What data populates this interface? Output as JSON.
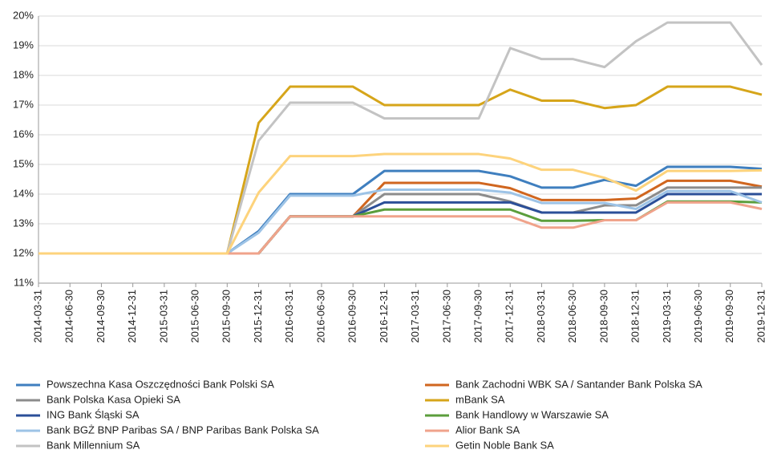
{
  "chart_data": {
    "type": "line",
    "x": [
      "2014-03-31",
      "2014-06-30",
      "2014-09-30",
      "2014-12-31",
      "2015-03-31",
      "2015-06-30",
      "2015-09-30",
      "2015-12-31",
      "2016-03-31",
      "2016-06-30",
      "2016-09-30",
      "2016-12-31",
      "2017-03-31",
      "2017-06-30",
      "2017-09-30",
      "2017-12-31",
      "2018-03-31",
      "2018-06-30",
      "2018-09-30",
      "2018-12-31",
      "2019-03-31",
      "2019-06-30",
      "2019-09-30",
      "2019-12-31"
    ],
    "ylim": [
      11,
      20
    ],
    "yticks": [
      {
        "value": 11,
        "label": "11%"
      },
      {
        "value": 12,
        "label": "12%"
      },
      {
        "value": 13,
        "label": "13%"
      },
      {
        "value": 14,
        "label": "14%"
      },
      {
        "value": 15,
        "label": "15%"
      },
      {
        "value": 16,
        "label": "16%"
      },
      {
        "value": 17,
        "label": "17%"
      },
      {
        "value": 18,
        "label": "18%"
      },
      {
        "value": 19,
        "label": "19%"
      },
      {
        "value": 20,
        "label": "20%"
      }
    ],
    "grid": true,
    "series": [
      {
        "name": "Powszechna Kasa Oszczędności Bank Polski SA",
        "color": "#3f7fbf",
        "values": [
          12,
          12,
          12,
          12,
          12,
          12,
          12,
          12.75,
          14,
          14,
          14,
          14.78,
          14.78,
          14.78,
          14.78,
          14.6,
          14.22,
          14.22,
          14.48,
          14.28,
          14.92,
          14.92,
          14.92,
          14.85
        ]
      },
      {
        "name": "Bank Zachodni WBK SA / Santander Bank Polska SA",
        "color": "#d0661f",
        "values": [
          12,
          12,
          12,
          12,
          12,
          12,
          12,
          12,
          13.25,
          13.25,
          13.25,
          14.38,
          14.38,
          14.38,
          14.38,
          14.2,
          13.8,
          13.8,
          13.8,
          13.85,
          14.45,
          14.45,
          14.45,
          14.25
        ]
      },
      {
        "name": "Bank Polska Kasa Opieki SA",
        "color": "#8c8c8c",
        "values": [
          12,
          12,
          12,
          12,
          12,
          12,
          12,
          12,
          13.25,
          13.25,
          13.25,
          14,
          14,
          14,
          14,
          13.75,
          13.38,
          13.38,
          13.62,
          13.62,
          14.22,
          14.22,
          14.22,
          14.22
        ]
      },
      {
        "name": "mBank SA",
        "color": "#d6a51a",
        "values": [
          12,
          12,
          12,
          12,
          12,
          12,
          12,
          16.4,
          17.62,
          17.62,
          17.62,
          17,
          17,
          17,
          17,
          17.52,
          17.15,
          17.15,
          16.9,
          17,
          17.62,
          17.62,
          17.62,
          17.35
        ]
      },
      {
        "name": "ING Bank Śląski SA",
        "color": "#2b4f98",
        "values": [
          12,
          12,
          12,
          12,
          12,
          12,
          12,
          12,
          13.25,
          13.25,
          13.25,
          13.72,
          13.72,
          13.72,
          13.72,
          13.72,
          13.38,
          13.38,
          13.38,
          13.38,
          14,
          14,
          14,
          14
        ]
      },
      {
        "name": "Bank Handlowy w Warszawie SA",
        "color": "#5b9e3c",
        "values": [
          12,
          12,
          12,
          12,
          12,
          12,
          12,
          12,
          13.25,
          13.25,
          13.25,
          13.48,
          13.48,
          13.48,
          13.48,
          13.48,
          13.1,
          13.1,
          13.12,
          13.12,
          13.75,
          13.75,
          13.75,
          13.72
        ]
      },
      {
        "name": "Bank BGŻ BNP Paribas SA / BNP Paribas Bank Polska SA",
        "color": "#9dc3e6",
        "values": [
          12,
          12,
          12,
          12,
          12,
          12,
          12,
          12.7,
          13.95,
          13.95,
          13.95,
          14.15,
          14.15,
          14.15,
          14.15,
          14.05,
          13.7,
          13.7,
          13.7,
          13.5,
          14.1,
          14.1,
          14.1,
          13.72
        ]
      },
      {
        "name": "Alior Bank SA",
        "color": "#f0a38b",
        "values": [
          12,
          12,
          12,
          12,
          12,
          12,
          12,
          12,
          13.25,
          13.25,
          13.25,
          13.25,
          13.25,
          13.25,
          13.25,
          13.25,
          12.87,
          12.87,
          13.12,
          13.12,
          13.72,
          13.72,
          13.72,
          13.5
        ]
      },
      {
        "name": "Bank Millennium SA",
        "color": "#c3c3c3",
        "values": [
          12,
          12,
          12,
          12,
          12,
          12,
          12,
          15.8,
          17.08,
          17.08,
          17.08,
          16.55,
          16.55,
          16.55,
          16.55,
          18.92,
          18.55,
          18.55,
          18.28,
          19.15,
          19.78,
          19.78,
          19.78,
          18.35
        ]
      },
      {
        "name": "Getin Noble Bank SA",
        "color": "#fdd37c",
        "values": [
          12,
          12,
          12,
          12,
          12,
          12,
          12,
          14.05,
          15.28,
          15.28,
          15.28,
          15.35,
          15.35,
          15.35,
          15.35,
          15.2,
          14.82,
          14.82,
          14.55,
          14.12,
          14.78,
          14.78,
          14.78,
          14.8
        ]
      }
    ]
  }
}
